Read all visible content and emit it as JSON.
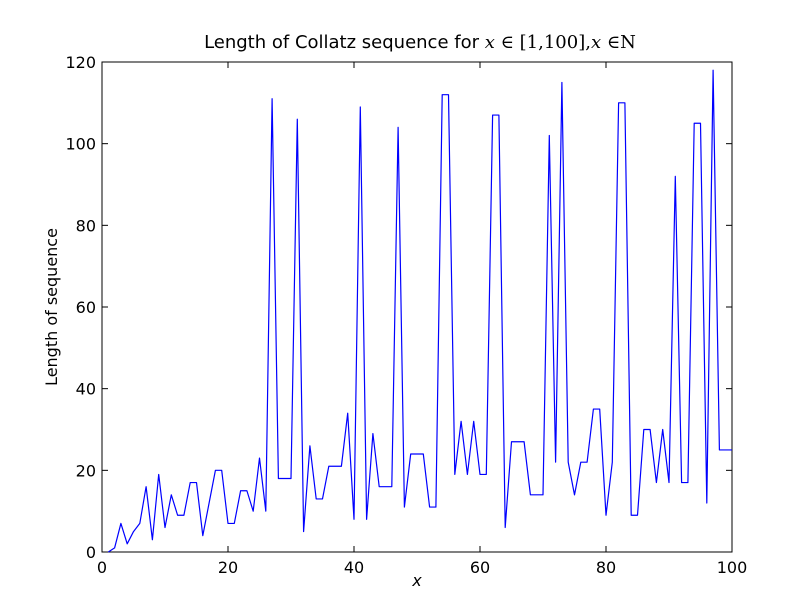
{
  "chart_data": {
    "type": "line",
    "title": {
      "prefix": "Length of Collatz sequence for ",
      "var1": "x",
      "in1": " ∈ ",
      "range": "[1,100]",
      "comma": ",",
      "var2": "x",
      "in2": " ∈",
      "set": "N"
    },
    "xlabel": "x",
    "ylabel": "Length of sequence",
    "xlim": [
      0,
      100
    ],
    "ylim": [
      0,
      120
    ],
    "xticks": [
      0,
      20,
      40,
      60,
      80,
      100
    ],
    "yticks": [
      0,
      20,
      40,
      60,
      80,
      100,
      120
    ],
    "grid": false,
    "line_color": "#0000ff",
    "series": [
      {
        "x": [
          1,
          2,
          3,
          4,
          5,
          6,
          7,
          8,
          9,
          10,
          11,
          12,
          13,
          14,
          15,
          16,
          17,
          18,
          19,
          20,
          21,
          22,
          23,
          24,
          25,
          26,
          27,
          28,
          29,
          30,
          31,
          32,
          33,
          34,
          35,
          36,
          37,
          38,
          39,
          40,
          41,
          42,
          43,
          44,
          45,
          46,
          47,
          48,
          49,
          50,
          51,
          52,
          53,
          54,
          55,
          56,
          57,
          58,
          59,
          60,
          61,
          62,
          63,
          64,
          65,
          66,
          67,
          68,
          69,
          70,
          71,
          72,
          73,
          74,
          75,
          76,
          77,
          78,
          79,
          80,
          81,
          82,
          83,
          84,
          85,
          86,
          87,
          88,
          89,
          90,
          91,
          92,
          93,
          94,
          95,
          96,
          97,
          98,
          99,
          100
        ],
        "y": [
          0,
          1,
          7,
          2,
          5,
          7,
          16,
          3,
          19,
          6,
          14,
          9,
          9,
          17,
          17,
          4,
          12,
          20,
          20,
          7,
          7,
          15,
          15,
          10,
          23,
          10,
          111,
          18,
          18,
          18,
          106,
          5,
          26,
          13,
          13,
          21,
          21,
          21,
          34,
          8,
          109,
          8,
          29,
          16,
          16,
          16,
          104,
          11,
          24,
          24,
          24,
          11,
          11,
          112,
          112,
          19,
          32,
          19,
          32,
          19,
          19,
          107,
          107,
          6,
          27,
          27,
          27,
          14,
          14,
          14,
          102,
          22,
          115,
          22,
          14,
          22,
          22,
          35,
          35,
          9,
          22,
          110,
          110,
          9,
          9,
          30,
          30,
          17,
          30,
          17,
          92,
          17,
          17,
          105,
          105,
          12,
          118,
          25,
          25,
          25
        ]
      }
    ]
  }
}
